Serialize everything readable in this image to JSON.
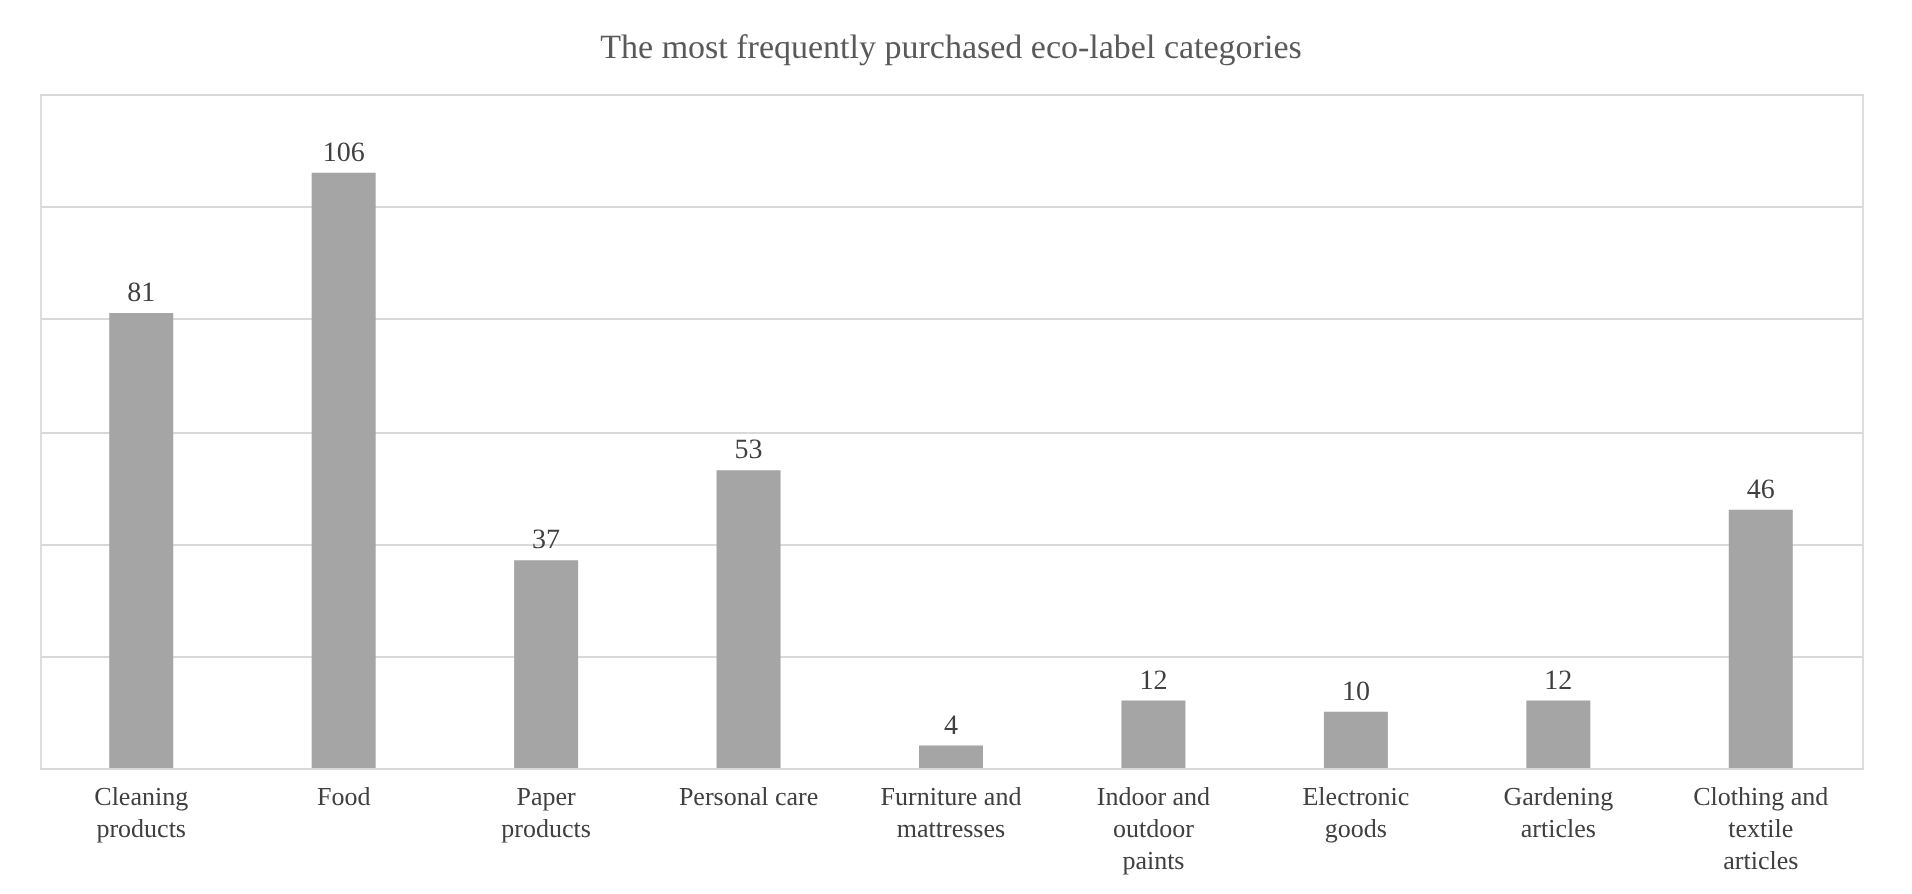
{
  "chart_data": {
    "type": "bar",
    "title": "The most frequently purchased eco-label categories",
    "categories": [
      "Cleaning products",
      "Food",
      "Paper products",
      "Personal care",
      "Furniture and mattresses",
      "Indoor and outdoor paints",
      "Electronic goods",
      "Gardening articles",
      "Clothing and textile articles"
    ],
    "values": [
      81,
      106,
      37,
      53,
      4,
      12,
      10,
      12,
      46
    ],
    "color": "#a5a5a5",
    "ylim": [
      0,
      120
    ],
    "yticks": [
      0,
      20,
      40,
      60,
      80,
      100,
      120
    ],
    "grid": "y",
    "tick_labels": "x",
    "data_labels": true
  }
}
